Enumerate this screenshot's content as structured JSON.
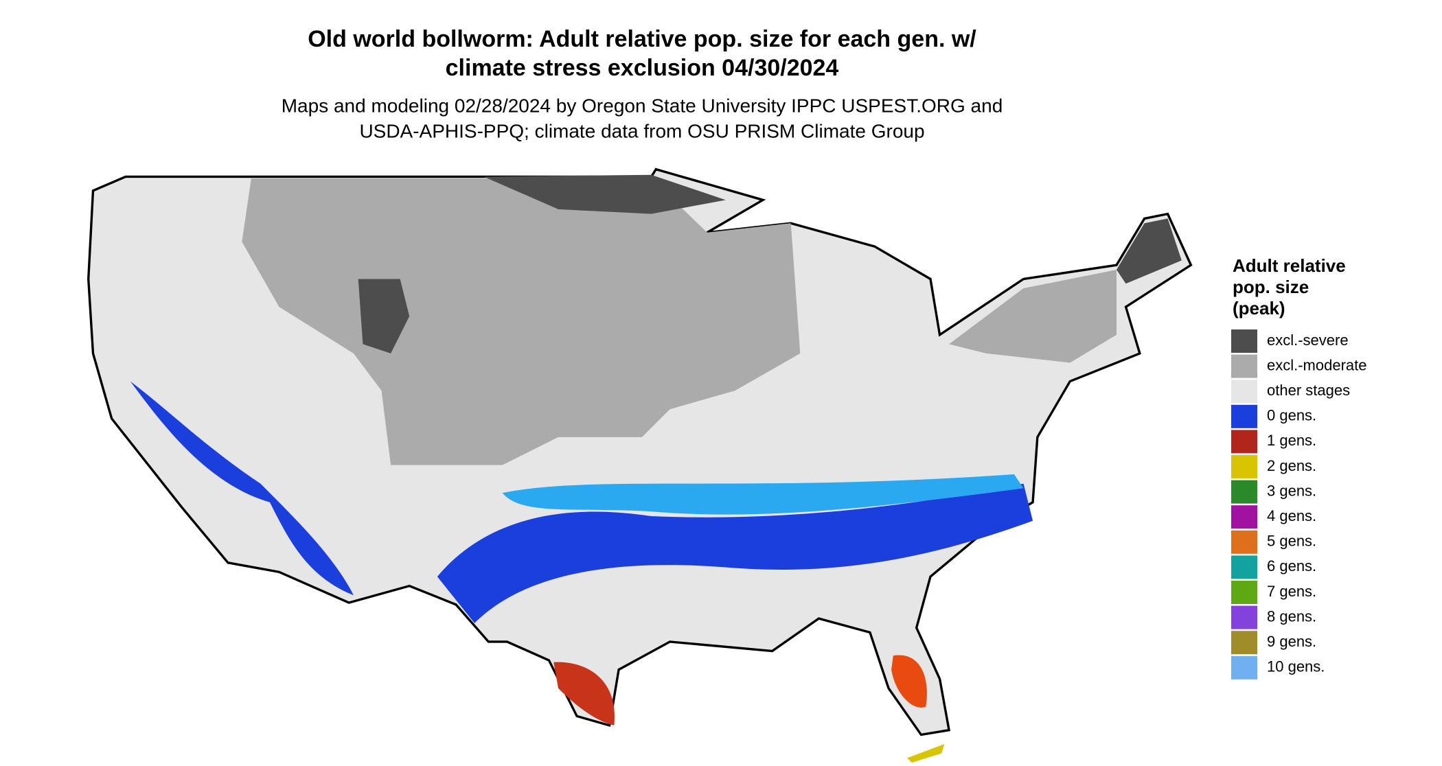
{
  "title_lines": [
    "Old world bollworm: Adult relative pop. size for each gen. w/",
    "climate stress exclusion 04/30/2024"
  ],
  "subtitle_lines": [
    "Maps and modeling 02/28/2024 by Oregon State University IPPC USPEST.ORG and",
    "USDA-APHIS-PPQ; climate data from OSU PRISM Climate Group"
  ],
  "legend": {
    "title_lines": [
      "Adult relative",
      "pop. size",
      "(peak)"
    ],
    "items": [
      {
        "label": "excl.-severe",
        "color": "#4d4d4d"
      },
      {
        "label": "excl.-moderate",
        "color": "#ababab"
      },
      {
        "label": "other stages",
        "color": "#e6e6e6"
      },
      {
        "label": "0 gens.",
        "color": "#1a3fdc"
      },
      {
        "label": "1 gens.",
        "color": "#b0261a"
      },
      {
        "label": "2 gens.",
        "color": "#d8c400"
      },
      {
        "label": "3 gens.",
        "color": "#2a8a2a"
      },
      {
        "label": "4 gens.",
        "color": "#a0129f"
      },
      {
        "label": "5 gens.",
        "color": "#de6f1c"
      },
      {
        "label": "6 gens.",
        "color": "#12a3a0"
      },
      {
        "label": "7 gens.",
        "color": "#5ea813"
      },
      {
        "label": "8 gens.",
        "color": "#8342dc"
      },
      {
        "label": "9 gens.",
        "color": "#a08c28"
      },
      {
        "label": "10 gens.",
        "color": "#70b0f0"
      }
    ]
  }
}
